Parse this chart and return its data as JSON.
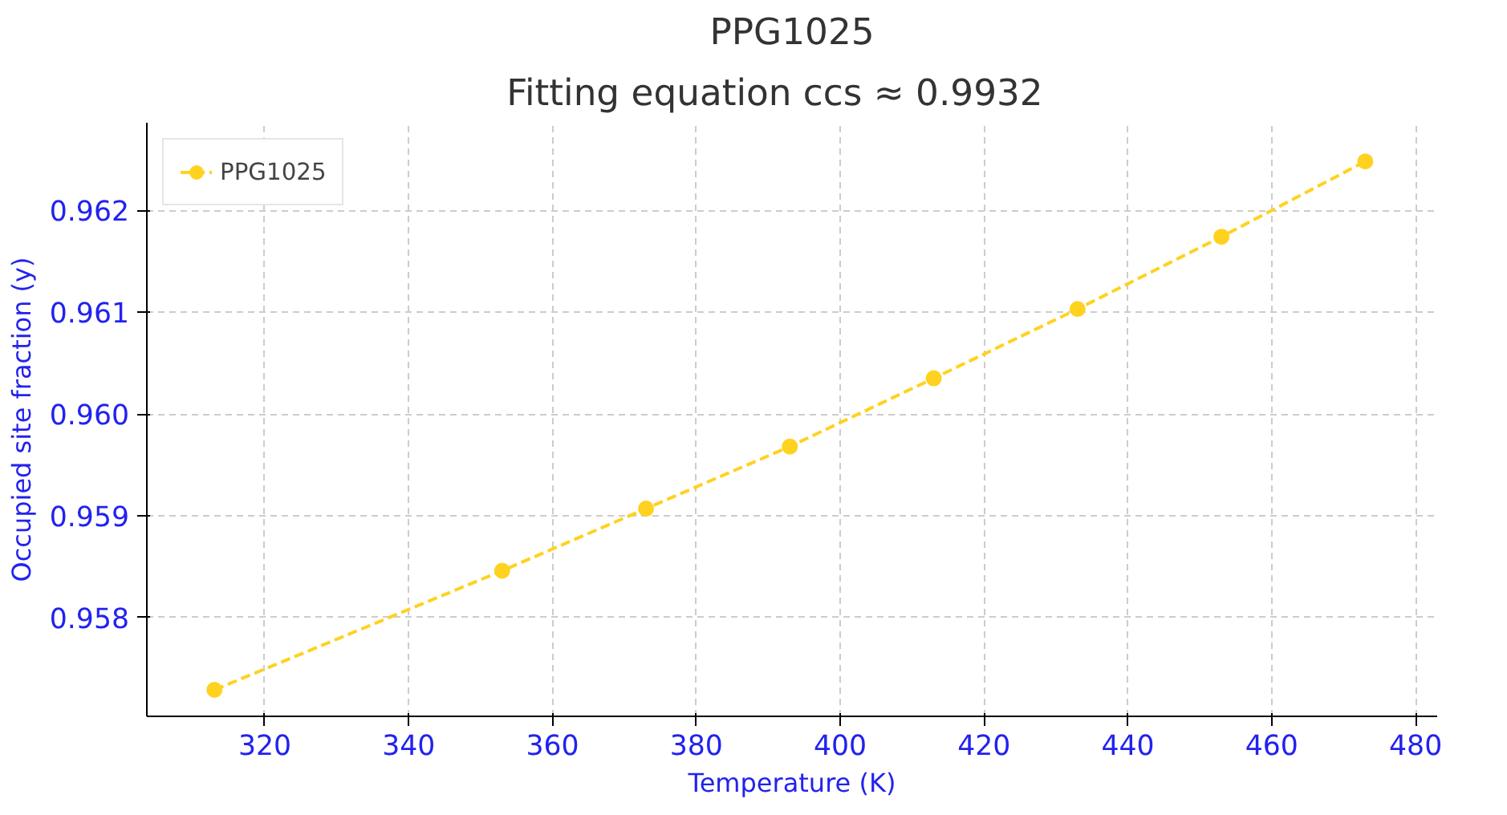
{
  "chart_data": {
    "type": "line",
    "title": "PPG1025",
    "subtitle": "Fitting equation    ccs ≈ 0.9932",
    "xlabel": "Temperature (K)",
    "ylabel": "Occupied site fraction (y)",
    "x": [
      313,
      353,
      373,
      393,
      413,
      433,
      453,
      473
    ],
    "series": [
      {
        "name": "PPG1025",
        "color": "#ffd21f",
        "values": [
          0.95729,
          0.95846,
          0.95907,
          0.95968,
          0.96035,
          0.96103,
          0.96174,
          0.96248
        ]
      }
    ],
    "xlim": [
      303.6,
      483
    ],
    "ylim": [
      0.95703,
      0.96286
    ],
    "xticks": [
      320,
      340,
      360,
      380,
      400,
      420,
      440,
      460,
      480
    ],
    "yticks": [
      0.958,
      0.959,
      {
        "value": 0.96,
        "label": "0.960"
      },
      0.961,
      0.962
    ],
    "grid": true,
    "legend": "top left",
    "marker": "circle",
    "line_style": "dashed"
  }
}
